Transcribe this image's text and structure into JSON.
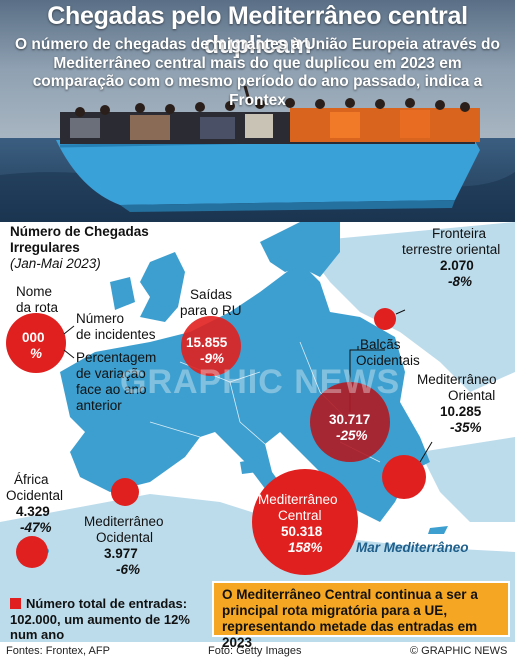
{
  "header": {
    "title": "Chegadas pelo Mediterrâneo central duplicam",
    "subtitle": "O número de chegadas de migrantes à União Europeia através do Mediterrâneo central mais do que duplicou em 2023 em comparação com o mesmo período do ano passado, indica a Frontex"
  },
  "legend": {
    "heading_1": "Número de Chegadas",
    "heading_2": "Irregulares",
    "period": "(Jan-Mai 2023)",
    "route_name_1": "Nome",
    "route_name_2": "da rota",
    "sample_value": "000",
    "sample_pct": "%",
    "incidents_1": "Número",
    "incidents_2": "de incidentes",
    "variation_1": "Percentagem",
    "variation_2": "de variação",
    "variation_3": "face ao ano",
    "variation_4": "anterior"
  },
  "routes": {
    "uk": {
      "name_1": "Saídas",
      "name_2": "para o RU",
      "value": "15.855",
      "pct": "-9%"
    },
    "eastern_land": {
      "name_1": "Fronteira",
      "name_2": "terrestre oriental",
      "value": "2.070",
      "pct": "-8%"
    },
    "balkans": {
      "name_1": "Balcãs",
      "name_2": "Ocidentais",
      "value": "30.717",
      "pct": "-25%"
    },
    "eastern_med": {
      "name_1": "Mediterrâneo",
      "name_2": "Oriental",
      "value": "10.285",
      "pct": "-35%"
    },
    "west_africa": {
      "name_1": "África",
      "name_2": "Ocidental",
      "value": "4.329",
      "pct": "-47%"
    },
    "western_med": {
      "name_1": "Mediterrâneo",
      "name_2": "Ocidental",
      "value": "3.977",
      "pct": "-6%"
    },
    "central_med": {
      "name_1": "Mediterrâneo",
      "name_2": "Central",
      "value": "50.318",
      "pct": "158%"
    }
  },
  "sea_label": "Mar Mediterrâneo",
  "watermark": "GRAPHIC NEWS",
  "total": {
    "line_1": "Número total de entradas:",
    "line_2": "102.000, um aumento de 12%",
    "line_3": "num ano"
  },
  "callout": "O Mediterrâneo Central continua a ser a principal rota migratória para a UE, representando metade das entradas em 2023",
  "footer": {
    "sources": "Fontes: Frontex, AFP",
    "photo": "Foto: Getty Images",
    "credit": "© GRAPHIC NEWS"
  },
  "colors": {
    "land_eu": "#3d9fcf",
    "land_other": "#bcdcec",
    "sea": "#ffffff",
    "bubble": "#e0201f",
    "bubble_dark": "#b01a22",
    "callout": "#f5a623"
  }
}
